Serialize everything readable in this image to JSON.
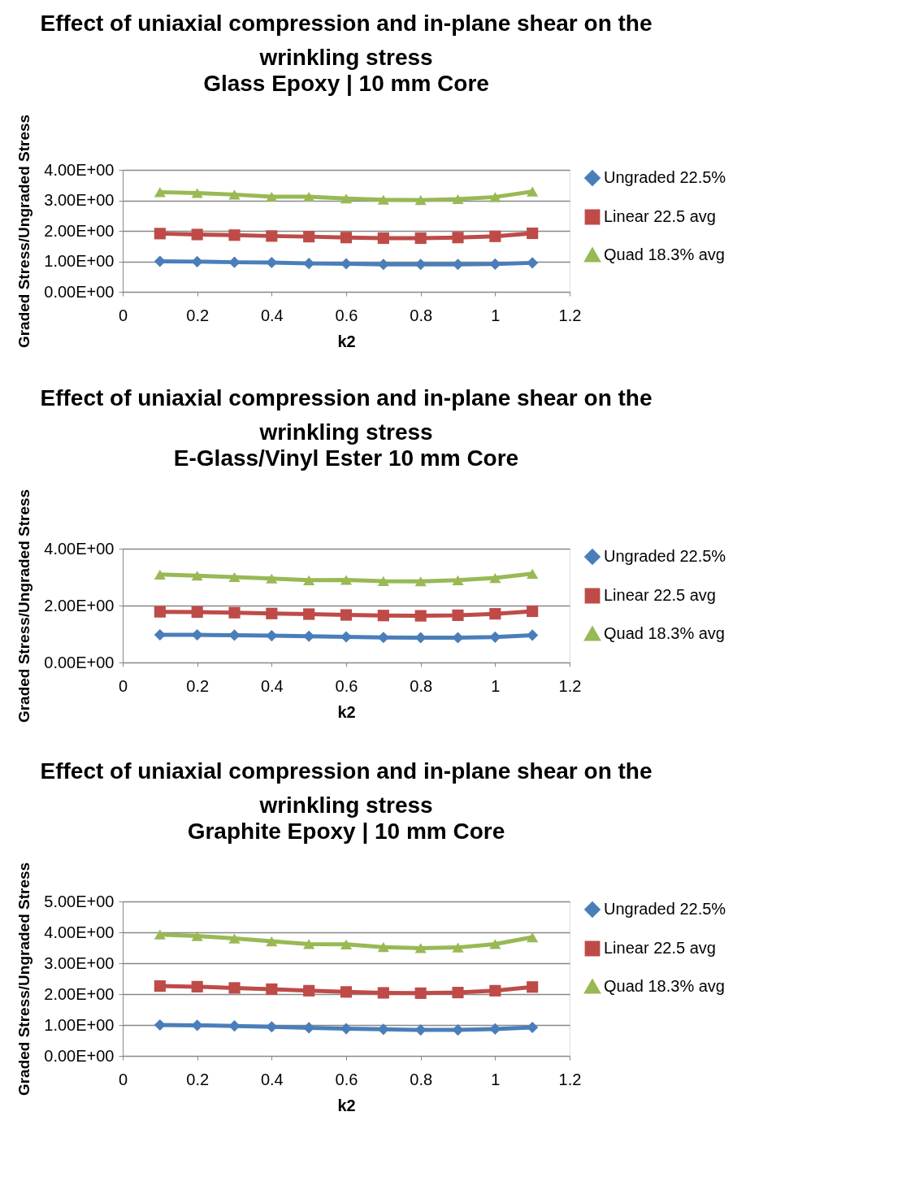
{
  "chart_data": [
    {
      "type": "line",
      "title": "Effect of uniaxial compression and in-plane shear on the wrinkling stress",
      "subtitle": "Glass Epoxy | 10 mm Core",
      "xlabel": "k2",
      "ylabel": "Graded Stress/Ungraded Stress",
      "x": [
        0.1,
        0.2,
        0.3,
        0.4,
        0.5,
        0.6,
        0.7,
        0.8,
        0.9,
        1.0,
        1.1
      ],
      "series": [
        {
          "name": "Ungraded 22.5%",
          "color": "#4a7ebb",
          "marker": "diamond",
          "values": [
            1.0,
            0.99,
            0.97,
            0.96,
            0.93,
            0.92,
            0.9,
            0.9,
            0.9,
            0.91,
            0.95
          ]
        },
        {
          "name": "Linear 22.5 avg",
          "color": "#be4b48",
          "marker": "square",
          "values": [
            1.91,
            1.88,
            1.86,
            1.83,
            1.81,
            1.78,
            1.76,
            1.76,
            1.78,
            1.82,
            1.92
          ]
        },
        {
          "name": "Quad 18.3% avg",
          "color": "#98b954",
          "marker": "triangle",
          "values": [
            3.27,
            3.24,
            3.19,
            3.12,
            3.12,
            3.06,
            3.02,
            3.01,
            3.04,
            3.11,
            3.29
          ]
        }
      ],
      "xlim": [
        0,
        1.2
      ],
      "xticks": [
        0,
        0.2,
        0.4,
        0.6,
        0.8,
        1,
        1.2
      ],
      "ylim": [
        0,
        4
      ],
      "yticks": [
        {
          "value": 0,
          "label": "0.00E+00"
        },
        {
          "value": 1,
          "label": "1.00E+00"
        },
        {
          "value": 2,
          "label": "2.00E+00"
        },
        {
          "value": 3,
          "label": "3.00E+00"
        },
        {
          "value": 4,
          "label": "4.00E+00"
        }
      ],
      "grid": "y",
      "legend": "right",
      "line_style": "solid"
    },
    {
      "type": "line",
      "title": "Effect of uniaxial compression and in-plane shear on the wrinkling stress",
      "subtitle": "E-Glass/Vinyl Ester 10 mm Core",
      "xlabel": "k2",
      "ylabel": "Graded Stress/Ungraded Stress",
      "x": [
        0.1,
        0.2,
        0.3,
        0.4,
        0.5,
        0.6,
        0.7,
        0.8,
        0.9,
        1.0,
        1.1
      ],
      "series": [
        {
          "name": "Ungraded 22.5%",
          "color": "#4a7ebb",
          "marker": "diamond",
          "values": [
            0.97,
            0.97,
            0.96,
            0.94,
            0.92,
            0.9,
            0.88,
            0.87,
            0.87,
            0.89,
            0.96
          ]
        },
        {
          "name": "Linear 22.5 avg",
          "color": "#be4b48",
          "marker": "square",
          "values": [
            1.78,
            1.77,
            1.75,
            1.72,
            1.7,
            1.67,
            1.65,
            1.64,
            1.66,
            1.71,
            1.8
          ]
        },
        {
          "name": "Quad 18.3% avg",
          "color": "#98b954",
          "marker": "triangle",
          "values": [
            3.09,
            3.05,
            3.0,
            2.95,
            2.89,
            2.9,
            2.86,
            2.85,
            2.89,
            2.97,
            3.12
          ]
        }
      ],
      "xlim": [
        0,
        1.2
      ],
      "xticks": [
        0,
        0.2,
        0.4,
        0.6,
        0.8,
        1,
        1.2
      ],
      "ylim": [
        0,
        4
      ],
      "yticks": [
        {
          "value": 0,
          "label": "0.00E+00"
        },
        {
          "value": 2,
          "label": "2.00E+00"
        },
        {
          "value": 4,
          "label": "4.00E+00"
        }
      ],
      "grid": "y",
      "legend": "right",
      "line_style": "solid"
    },
    {
      "type": "line",
      "title": "Effect of uniaxial compression and in-plane shear on the wrinkling stress",
      "subtitle": "Graphite Epoxy | 10 mm Core",
      "xlabel": "k2",
      "ylabel": "Graded Stress/Ungraded Stress",
      "x": [
        0.1,
        0.2,
        0.3,
        0.4,
        0.5,
        0.6,
        0.7,
        0.8,
        0.9,
        1.0,
        1.1
      ],
      "series": [
        {
          "name": "Ungraded 22.5%",
          "color": "#4a7ebb",
          "marker": "diamond",
          "values": [
            1.0,
            0.99,
            0.97,
            0.94,
            0.91,
            0.88,
            0.86,
            0.84,
            0.84,
            0.87,
            0.92
          ]
        },
        {
          "name": "Linear 22.5 avg",
          "color": "#be4b48",
          "marker": "square",
          "values": [
            2.26,
            2.24,
            2.2,
            2.16,
            2.11,
            2.07,
            2.04,
            2.03,
            2.05,
            2.11,
            2.23
          ]
        },
        {
          "name": "Quad 18.3% avg",
          "color": "#98b954",
          "marker": "triangle",
          "values": [
            3.93,
            3.88,
            3.8,
            3.71,
            3.62,
            3.61,
            3.52,
            3.49,
            3.51,
            3.62,
            3.84
          ]
        }
      ],
      "xlim": [
        0,
        1.2
      ],
      "xticks": [
        0,
        0.2,
        0.4,
        0.6,
        0.8,
        1,
        1.2
      ],
      "ylim": [
        0,
        5
      ],
      "yticks": [
        {
          "value": 0,
          "label": "0.00E+00"
        },
        {
          "value": 1,
          "label": "1.00E+00"
        },
        {
          "value": 2,
          "label": "2.00E+00"
        },
        {
          "value": 3,
          "label": "3.00E+00"
        },
        {
          "value": 4,
          "label": "4.00E+00"
        },
        {
          "value": 5,
          "label": "5.00E+00"
        }
      ],
      "grid": "y",
      "legend": "right",
      "line_style": "solid"
    }
  ]
}
